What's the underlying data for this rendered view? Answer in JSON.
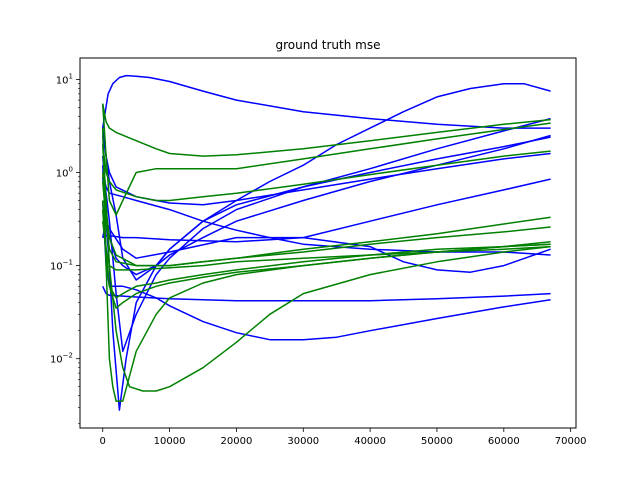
{
  "chart_data": {
    "type": "line",
    "title": "ground truth mse",
    "xlabel": "",
    "ylabel": "",
    "xlim": [
      -3400,
      70800
    ],
    "ylim": [
      0.0018,
      17
    ],
    "yscale": "log",
    "grid": false,
    "x_ticks": [
      0,
      10000,
      20000,
      30000,
      40000,
      50000,
      60000,
      70000
    ],
    "x_tick_labels": [
      "0",
      "10000",
      "20000",
      "30000",
      "40000",
      "50000",
      "60000",
      "70000"
    ],
    "y_ticks": [
      0.01,
      0.1,
      1,
      10
    ],
    "y_tick_labels": [
      {
        "base": "10",
        "exp": "−2"
      },
      {
        "base": "10",
        "exp": "−1"
      },
      {
        "base": "10",
        "exp": "0"
      },
      {
        "base": "10",
        "exp": "1"
      }
    ],
    "colors": {
      "blue": "#0000ff",
      "green": "#008000"
    },
    "series": [
      {
        "color": "blue",
        "x": [
          0,
          800,
          1500,
          2500,
          3500,
          5000,
          7000,
          10000,
          15000,
          20000,
          30000,
          40000,
          50000,
          60000,
          67000
        ],
        "y": [
          3,
          7,
          9,
          10.5,
          11,
          10.8,
          10.5,
          9.5,
          7.5,
          6,
          4.5,
          3.8,
          3.3,
          3.0,
          3.0
        ]
      },
      {
        "color": "blue",
        "x": [
          0,
          500,
          1000,
          2000,
          3000,
          5000,
          8000,
          10000,
          15000,
          20000,
          25000,
          30000,
          35000,
          40000,
          45000,
          50000,
          55000,
          60000,
          63000,
          67000
        ],
        "y": [
          3,
          1.5,
          0.8,
          0.35,
          0.12,
          0.07,
          0.1,
          0.15,
          0.3,
          0.5,
          0.8,
          1.2,
          2,
          3,
          4.5,
          6.5,
          8,
          9,
          9,
          7.5
        ]
      },
      {
        "color": "blue",
        "x": [
          0,
          500,
          1000,
          2000,
          3000,
          5000,
          8000,
          10000,
          15000,
          20000,
          30000,
          40000,
          50000,
          60000,
          67000
        ],
        "y": [
          1.5,
          0.6,
          0.3,
          0.05,
          0.012,
          0.03,
          0.08,
          0.12,
          0.25,
          0.4,
          0.7,
          1.1,
          1.8,
          2.8,
          3.8
        ]
      },
      {
        "color": "blue",
        "x": [
          0,
          500,
          1000,
          1500,
          2500,
          3500,
          5000,
          8000,
          10000,
          15000,
          20000,
          30000,
          40000,
          50000,
          60000,
          67000
        ],
        "y": [
          1.2,
          0.3,
          0.1,
          0.02,
          0.0028,
          0.01,
          0.04,
          0.1,
          0.15,
          0.3,
          0.45,
          0.7,
          1.0,
          1.4,
          1.9,
          2.4
        ]
      },
      {
        "color": "blue",
        "x": [
          0,
          500,
          1000,
          2000,
          3000,
          5000,
          8000,
          10000,
          15000,
          20000,
          30000,
          40000,
          50000,
          60000,
          67000
        ],
        "y": [
          0.9,
          0.3,
          0.2,
          0.12,
          0.1,
          0.08,
          0.1,
          0.13,
          0.2,
          0.3,
          0.5,
          0.8,
          1.2,
          1.8,
          2.5
        ]
      },
      {
        "color": "blue",
        "x": [
          0,
          500,
          1000,
          2000,
          5000,
          8000,
          10000,
          15000,
          20000,
          30000,
          40000,
          50000,
          60000,
          67000
        ],
        "y": [
          2.5,
          1.5,
          1.0,
          0.7,
          0.55,
          0.5,
          0.47,
          0.45,
          0.5,
          0.65,
          0.85,
          1.1,
          1.4,
          1.6
        ]
      },
      {
        "color": "blue",
        "x": [
          0,
          500,
          1000,
          3000,
          5000,
          10000,
          15000,
          20000,
          25000,
          30000,
          40000,
          50000,
          60000,
          67000
        ],
        "y": [
          1.0,
          0.7,
          0.6,
          0.55,
          0.5,
          0.4,
          0.3,
          0.24,
          0.2,
          0.17,
          0.15,
          0.14,
          0.14,
          0.13
        ]
      },
      {
        "color": "blue",
        "x": [
          0,
          500,
          1000,
          3000,
          5000,
          10000,
          20000,
          30000,
          40000,
          50000,
          60000,
          67000
        ],
        "y": [
          0.2,
          0.21,
          0.21,
          0.2,
          0.2,
          0.19,
          0.18,
          0.2,
          0.3,
          0.45,
          0.65,
          0.85
        ]
      },
      {
        "color": "blue",
        "x": [
          0,
          500,
          1000,
          3000,
          5000,
          10000,
          20000,
          30000,
          40000,
          45000,
          50000,
          55000,
          60000,
          67000
        ],
        "y": [
          0.2,
          0.3,
          0.25,
          0.15,
          0.12,
          0.14,
          0.2,
          0.2,
          0.16,
          0.11,
          0.09,
          0.085,
          0.1,
          0.15
        ]
      },
      {
        "color": "blue",
        "x": [
          0,
          500,
          1000,
          3000,
          5000,
          10000,
          20000,
          30000,
          40000,
          50000,
          60000,
          67000
        ],
        "y": [
          0.06,
          0.05,
          0.048,
          0.047,
          0.046,
          0.044,
          0.042,
          0.042,
          0.042,
          0.044,
          0.047,
          0.05
        ]
      },
      {
        "color": "blue",
        "x": [
          0,
          500,
          1000,
          2000,
          3000,
          5000,
          8000,
          10000,
          15000,
          20000,
          25000,
          30000,
          35000,
          40000,
          50000,
          60000,
          67000
        ],
        "y": [
          0.5,
          0.1,
          0.06,
          0.06,
          0.06,
          0.055,
          0.045,
          0.037,
          0.025,
          0.019,
          0.016,
          0.016,
          0.017,
          0.02,
          0.027,
          0.036,
          0.043
        ]
      },
      {
        "color": "green",
        "x": [
          0,
          500,
          1000,
          2000,
          5000,
          8000,
          10000,
          15000,
          20000,
          30000,
          40000,
          50000,
          60000,
          67000
        ],
        "y": [
          5.5,
          3.5,
          3.0,
          2.7,
          2.2,
          1.8,
          1.6,
          1.5,
          1.55,
          1.8,
          2.2,
          2.7,
          3.3,
          3.7
        ]
      },
      {
        "color": "green",
        "x": [
          0,
          500,
          1000,
          2000,
          3000,
          5000,
          8000,
          10000,
          15000,
          20000,
          30000,
          40000,
          50000,
          60000,
          67000
        ],
        "y": [
          5.5,
          1.5,
          0.5,
          0.35,
          0.5,
          1.0,
          1.1,
          1.1,
          1.1,
          1.1,
          1.4,
          1.8,
          2.3,
          2.9,
          3.4
        ]
      },
      {
        "color": "green",
        "x": [
          0,
          500,
          1000,
          2000,
          5000,
          8000,
          10000,
          15000,
          20000,
          30000,
          40000,
          50000,
          60000,
          67000
        ],
        "y": [
          2.0,
          1.0,
          0.8,
          0.65,
          0.55,
          0.5,
          0.5,
          0.55,
          0.6,
          0.75,
          0.95,
          1.2,
          1.5,
          1.7
        ]
      },
      {
        "color": "green",
        "x": [
          0,
          500,
          1000,
          2000,
          5000,
          10000,
          15000,
          20000,
          30000,
          40000,
          50000,
          60000,
          67000
        ],
        "y": [
          1.0,
          0.4,
          0.2,
          0.13,
          0.1,
          0.1,
          0.11,
          0.12,
          0.15,
          0.18,
          0.22,
          0.28,
          0.33
        ]
      },
      {
        "color": "green",
        "x": [
          0,
          500,
          1000,
          2000,
          5000,
          10000,
          15000,
          20000,
          30000,
          40000,
          50000,
          60000,
          67000
        ],
        "y": [
          0.8,
          0.3,
          0.15,
          0.11,
          0.1,
          0.1,
          0.11,
          0.12,
          0.14,
          0.17,
          0.2,
          0.23,
          0.26
        ]
      },
      {
        "color": "green",
        "x": [
          0,
          500,
          1000,
          2000,
          3000,
          5000,
          8000,
          10000,
          15000,
          20000,
          30000,
          40000,
          50000,
          60000,
          67000
        ],
        "y": [
          0.5,
          0.15,
          0.06,
          0.035,
          0.04,
          0.05,
          0.06,
          0.065,
          0.075,
          0.085,
          0.1,
          0.12,
          0.14,
          0.16,
          0.18
        ]
      },
      {
        "color": "green",
        "x": [
          0,
          500,
          1000,
          2000,
          3000,
          5000,
          8000,
          10000,
          15000,
          20000,
          30000,
          40000,
          50000,
          60000,
          67000
        ],
        "y": [
          0.4,
          0.12,
          0.06,
          0.045,
          0.05,
          0.06,
          0.065,
          0.07,
          0.08,
          0.09,
          0.11,
          0.13,
          0.15,
          0.16,
          0.17
        ]
      },
      {
        "color": "green",
        "x": [
          0,
          500,
          1000,
          2000,
          5000,
          10000,
          15000,
          20000,
          30000,
          40000,
          50000,
          60000,
          67000
        ],
        "y": [
          0.3,
          0.15,
          0.1,
          0.09,
          0.09,
          0.095,
          0.1,
          0.11,
          0.12,
          0.13,
          0.14,
          0.15,
          0.16
        ]
      },
      {
        "color": "green",
        "x": [
          0,
          500,
          1000,
          1500,
          2000,
          3000,
          5000,
          8000,
          10000,
          15000,
          20000,
          30000,
          40000,
          50000,
          60000,
          67000
        ],
        "y": [
          3.0,
          0.1,
          0.01,
          0.005,
          0.0035,
          0.0035,
          0.012,
          0.03,
          0.045,
          0.065,
          0.08,
          0.1,
          0.12,
          0.14,
          0.16,
          0.17
        ]
      },
      {
        "color": "green",
        "x": [
          0,
          500,
          1000,
          2000,
          3000,
          4000,
          6000,
          8000,
          10000,
          15000,
          20000,
          25000,
          30000,
          40000,
          50000,
          60000,
          67000
        ],
        "y": [
          2.0,
          0.5,
          0.1,
          0.02,
          0.008,
          0.005,
          0.0045,
          0.0045,
          0.005,
          0.008,
          0.015,
          0.03,
          0.05,
          0.08,
          0.11,
          0.14,
          0.16
        ]
      }
    ]
  }
}
